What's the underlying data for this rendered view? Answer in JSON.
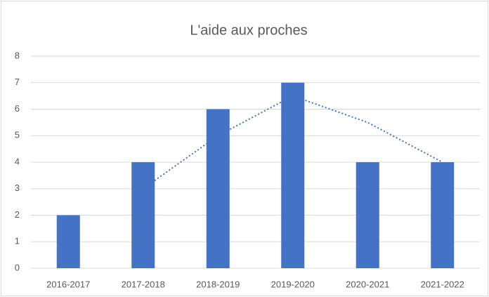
{
  "chart_data": {
    "type": "bar",
    "title": "L'aide aux proches",
    "categories": [
      "2016-2017",
      "2017-2018",
      "2018-2019",
      "2019-2020",
      "2020-2021",
      "2021-2022"
    ],
    "values": [
      2,
      4,
      6,
      7,
      4,
      4
    ],
    "color": "#4472c4",
    "trendline": {
      "values": [
        null,
        3,
        5,
        6.5,
        5.5,
        4
      ],
      "color": "#4472c4"
    },
    "ylim": [
      0,
      8
    ],
    "yticks": [
      0,
      1,
      2,
      3,
      4,
      5,
      6,
      7,
      8
    ],
    "grid": true
  }
}
